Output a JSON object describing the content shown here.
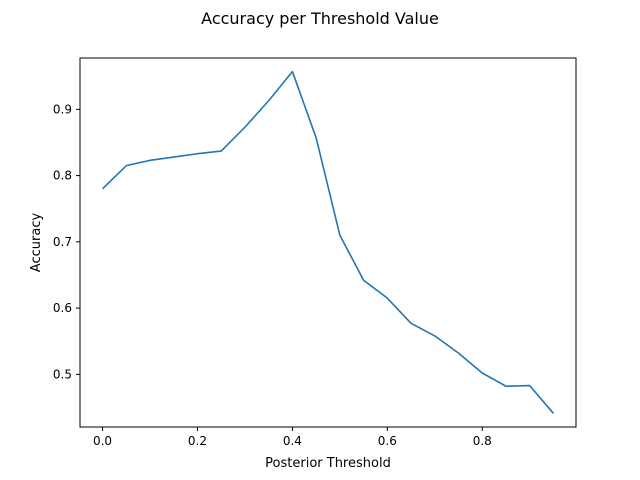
{
  "chart_data": {
    "type": "line",
    "title": "Accuracy per Threshold Value",
    "xlabel": "Posterior Threshold",
    "ylabel": "Accuracy",
    "xlim": [
      -0.0475,
      0.9975
    ],
    "ylim": [
      0.4205,
      0.9775
    ],
    "xticks": [
      0.0,
      0.2,
      0.4,
      0.6,
      0.8
    ],
    "xtick_labels": [
      "0.0",
      "0.2",
      "0.4",
      "0.6",
      "0.8"
    ],
    "yticks": [
      0.5,
      0.6,
      0.7,
      0.8,
      0.9
    ],
    "ytick_labels": [
      "0.5",
      "0.6",
      "0.7",
      "0.8",
      "0.9"
    ],
    "grid": false,
    "line_color": "#1f77b4",
    "series": [
      {
        "x": [
          0.0,
          0.05,
          0.1,
          0.15,
          0.2,
          0.25,
          0.3,
          0.35,
          0.4,
          0.45,
          0.5,
          0.55,
          0.6,
          0.65,
          0.7,
          0.75,
          0.8,
          0.85,
          0.9,
          0.95
        ],
        "y": [
          0.78,
          0.815,
          0.823,
          0.828,
          0.833,
          0.837,
          0.873,
          0.913,
          0.957,
          0.857,
          0.71,
          0.642,
          0.615,
          0.577,
          0.558,
          0.532,
          0.502,
          0.482,
          0.483,
          0.441
        ]
      }
    ]
  }
}
